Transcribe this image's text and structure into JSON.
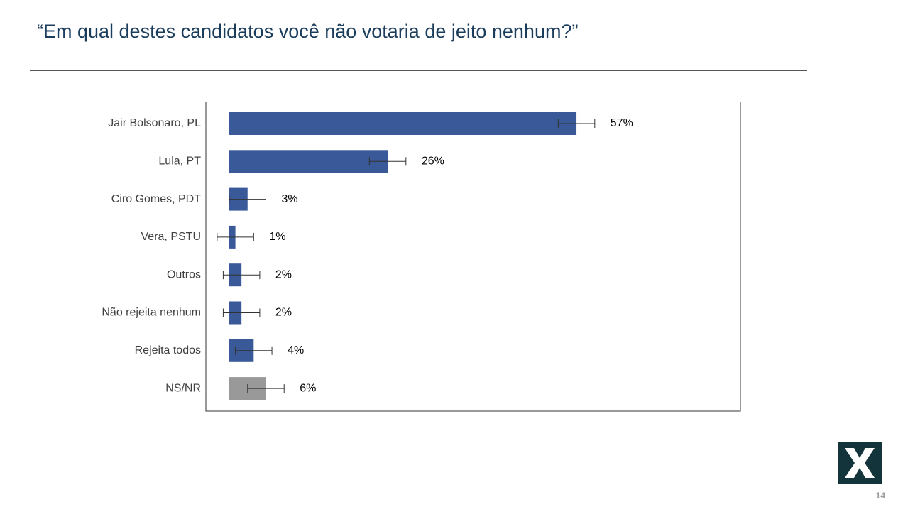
{
  "chart_data": {
    "type": "bar",
    "orientation": "horizontal",
    "title": "“Em qual destes candidatos você não votaria de jeito nenhum?”",
    "categories": [
      "Jair Bolsonaro, PL",
      "Lula, PT",
      "Ciro Gomes, PDT",
      "Vera, PSTU",
      "Outros",
      "Não rejeita nenhum",
      "Rejeita todos",
      "NS/NR"
    ],
    "values": [
      57,
      26,
      3,
      1,
      2,
      2,
      4,
      6
    ],
    "value_labels": [
      "57%",
      "26%",
      "3%",
      "1%",
      "2%",
      "2%",
      "4%",
      "6%"
    ],
    "errors": [
      3,
      3,
      3,
      3,
      3,
      3,
      3,
      3
    ],
    "colors": [
      "#3a5998",
      "#3a5998",
      "#3a5998",
      "#3a5998",
      "#3a5998",
      "#3a5998",
      "#3a5998",
      "#999999"
    ]
  },
  "page_number": "14"
}
